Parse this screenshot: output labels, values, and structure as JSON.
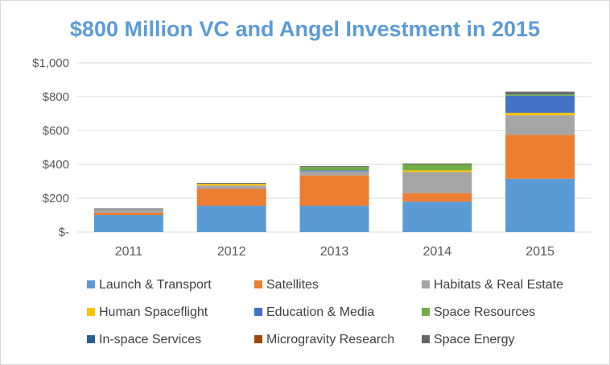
{
  "chart_data": {
    "type": "bar",
    "stacked": true,
    "title": "$800 Million VC and Angel Investment in 2015",
    "categories": [
      "2011",
      "2012",
      "2013",
      "2014",
      "2015"
    ],
    "ylim": [
      0,
      1000
    ],
    "yticks": [
      0,
      200,
      400,
      600,
      800,
      1000
    ],
    "ytick_labels": [
      "$-",
      "$200",
      "$400",
      "$600",
      "$800",
      "$1,000"
    ],
    "grid": true,
    "legend_position": "bottom",
    "series": [
      {
        "name": "Launch & Transport",
        "color": "#5b9bd5",
        "values": [
          100,
          155,
          155,
          180,
          315
        ]
      },
      {
        "name": "Satellites",
        "color": "#ed7d31",
        "values": [
          15,
          100,
          180,
          50,
          260
        ]
      },
      {
        "name": "Habitats & Real Estate",
        "color": "#a5a5a5",
        "values": [
          20,
          20,
          25,
          125,
          115
        ]
      },
      {
        "name": "Human Spaceflight",
        "color": "#ffc000",
        "values": [
          0,
          10,
          0,
          10,
          15
        ]
      },
      {
        "name": "Education & Media",
        "color": "#4472c4",
        "values": [
          0,
          0,
          5,
          0,
          100
        ]
      },
      {
        "name": "Space Resources",
        "color": "#70ad47",
        "values": [
          0,
          0,
          20,
          35,
          8
        ]
      },
      {
        "name": "In-space Services",
        "color": "#255e91",
        "values": [
          0,
          0,
          0,
          0,
          5
        ]
      },
      {
        "name": "Microgravity Research",
        "color": "#9e480e",
        "values": [
          0,
          0,
          0,
          0,
          2
        ]
      },
      {
        "name": "Space Energy",
        "color": "#636363",
        "values": [
          5,
          5,
          5,
          5,
          10
        ]
      }
    ]
  }
}
